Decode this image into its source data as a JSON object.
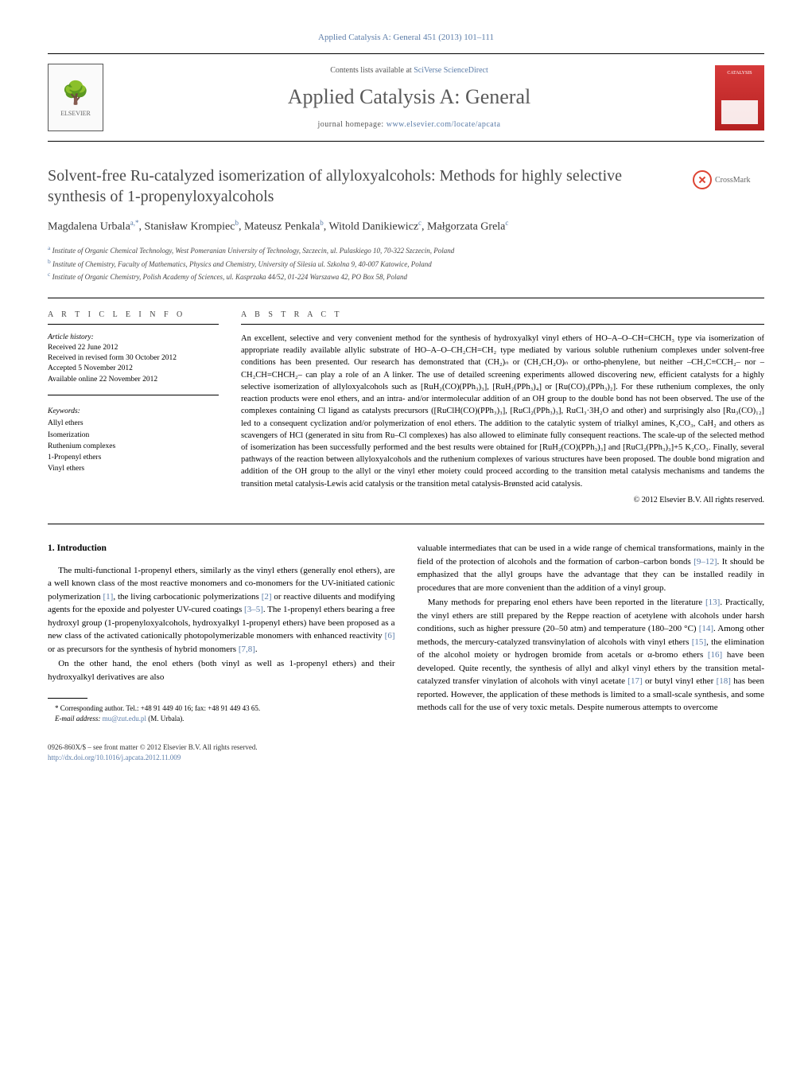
{
  "citation": "Applied Catalysis A: General 451 (2013) 101–111",
  "masthead": {
    "publisher": "ELSEVIER",
    "contents_prefix": "Contents lists available at ",
    "contents_link": "SciVerse ScienceDirect",
    "journal_title": "Applied Catalysis A: General",
    "homepage_prefix": "journal homepage: ",
    "homepage_url": "www.elsevier.com/locate/apcata",
    "cover_label": "CATALYSIS"
  },
  "article": {
    "title": "Solvent-free Ru-catalyzed isomerization of allyloxyalcohols: Methods for highly selective synthesis of 1-propenyloxyalcohols",
    "crossmark": "CrossMark",
    "authors_html": "Magdalena Urbala",
    "author1": "Magdalena Urbala",
    "author1_sup": "a,*",
    "author2": "Stanisław Krompiec",
    "author2_sup": "b",
    "author3": "Mateusz Penkala",
    "author3_sup": "b",
    "author4": "Witold Danikiewicz",
    "author4_sup": "c",
    "author5": "Małgorzata Grela",
    "author5_sup": "c",
    "affiliations": {
      "a": "Institute of Organic Chemical Technology, West Pomeranian University of Technology, Szczecin, ul. Pulaskiego 10, 70-322 Szczecin, Poland",
      "b": "Institute of Chemistry, Faculty of Mathematics, Physics and Chemistry, University of Silesia ul. Szkolna 9, 40-007 Katowice, Poland",
      "c": "Institute of Organic Chemistry, Polish Academy of Sciences, ul. Kasprzaka 44/52, 01-224 Warszawa 42, PO Box 58, Poland"
    }
  },
  "info": {
    "heading_info": "a r t i c l e   i n f o",
    "heading_abstract": "a b s t r a c t",
    "history_label": "Article history:",
    "received": "Received 22 June 2012",
    "revised": "Received in revised form 30 October 2012",
    "accepted": "Accepted 5 November 2012",
    "online": "Available online 22 November 2012",
    "keywords_label": "Keywords:",
    "keywords": [
      "Allyl ethers",
      "Isomerization",
      "Ruthenium complexes",
      "1-Propenyl ethers",
      "Vinyl ethers"
    ]
  },
  "abstract": {
    "text": "An excellent, selective and very convenient method for the synthesis of hydroxyalkyl vinyl ethers of HO–A–O–CH=CHCH₃ type via isomerization of appropriate readily available allylic substrate of HO–A–O–CH₂CH=CH₂ type mediated by various soluble ruthenium complexes under solvent-free conditions has been presented. Our research has demonstrated that (CH₂)ₙ or (CH₂CH₂O)ₙ or ortho-phenylene, but neither –CH₂C≡CCH₂– nor –CH₂CH=CHCH₂– can play a role of an A linker. The use of detailed screening experiments allowed discovering new, efficient catalysts for a highly selective isomerization of allyloxyalcohols such as [RuH₂(CO)(PPh₃)₃], [RuH₂(PPh₃)₄] or [Ru(CO)₃(PPh₃)₂]. For these ruthenium complexes, the only reaction products were enol ethers, and an intra- and/or intermolecular addition of an OH group to the double bond has not been observed. The use of the complexes containing Cl ligand as catalysts precursors ([RuClH(CO)(PPh₃)₃], [RuCl₂(PPh₃)₃], RuCl₃·3H₂O and other) and surprisingly also [Ru₃(CO)₁₂] led to a consequent cyclization and/or polymerization of enol ethers. The addition to the catalytic system of trialkyl amines, K₂CO₃, CaH₂ and others as scavengers of HCl (generated in situ from Ru–Cl complexes) has also allowed to eliminate fully consequent reactions. The scale-up of the selected method of isomerization has been successfully performed and the best results were obtained for [RuH₂(CO)(PPh₃)₃] and [RuCl₂(PPh₃)₃]+5 K₂CO₃. Finally, several pathways of the reaction between allyloxyalcohols and the ruthenium complexes of various structures have been proposed. The double bond migration and addition of the OH group to the allyl or the vinyl ether moiety could proceed according to the transition metal catalysis mechanisms and tandems the transition metal catalysis-Lewis acid catalysis or the transition metal catalysis-Brønsted acid catalysis.",
    "copyright": "© 2012 Elsevier B.V. All rights reserved."
  },
  "body": {
    "section_heading": "1. Introduction",
    "col1_p1": "The multi-functional 1-propenyl ethers, similarly as the vinyl ethers (generally enol ethers), are a well known class of the most reactive monomers and co-monomers for the UV-initiated cationic polymerization [1], the living carbocationic polymerizations [2] or reactive diluents and modifying agents for the epoxide and polyester UV-cured coatings [3–5]. The 1-propenyl ethers bearing a free hydroxyl group (1-propenyloxyalcohols, hydroxyalkyl 1-propenyl ethers) have been proposed as a new class of the activated cationically photopolymerizable monomers with enhanced reactivity [6] or as precursors for the synthesis of hybrid monomers [7,8].",
    "col1_p2": "On the other hand, the enol ethers (both vinyl as well as 1-propenyl ethers) and their hydroxyalkyl derivatives are also",
    "col2_p1": "valuable intermediates that can be used in a wide range of chemical transformations, mainly in the field of the protection of alcohols and the formation of carbon–carbon bonds [9–12]. It should be emphasized that the allyl groups have the advantage that they can be installed readily in procedures that are more convenient than the addition of a vinyl group.",
    "col2_p2": "Many methods for preparing enol ethers have been reported in the literature [13]. Practically, the vinyl ethers are still prepared by the Reppe reaction of acetylene with alcohols under harsh conditions, such as higher pressure (20–50 atm) and temperature (180–200 °C) [14]. Among other methods, the mercury-catalyzed transvinylation of alcohols with vinyl ethers [15], the elimination of the alcohol moiety or hydrogen bromide from acetals or α-bromo ethers [16] have been developed. Quite recently, the synthesis of allyl and alkyl vinyl ethers by the transition metal-catalyzed transfer vinylation of alcohols with vinyl acetate [17] or butyl vinyl ether [18] has been reported. However, the application of these methods is limited to a small-scale synthesis, and some methods call for the use of very toxic metals. Despite numerous attempts to overcome"
  },
  "footnote": {
    "corr": "* Corresponding author. Tel.: +48 91 449 40 16; fax: +48 91 449 43 65.",
    "email_label": "E-mail address: ",
    "email": "mu@zut.edu.pl",
    "email_suffix": " (M. Urbala)."
  },
  "footer": {
    "line1": "0926-860X/$ – see front matter © 2012 Elsevier B.V. All rights reserved.",
    "doi": "http://dx.doi.org/10.1016/j.apcata.2012.11.009"
  },
  "colors": {
    "link": "#5b7ca8",
    "text": "#000000",
    "heading_gray": "#4a4a4a",
    "cover_red": "#b52020"
  },
  "typography": {
    "body_pt": 11,
    "abstract_pt": 10.5,
    "title_pt": 20,
    "journal_title_pt": 26,
    "affiliation_pt": 9
  }
}
